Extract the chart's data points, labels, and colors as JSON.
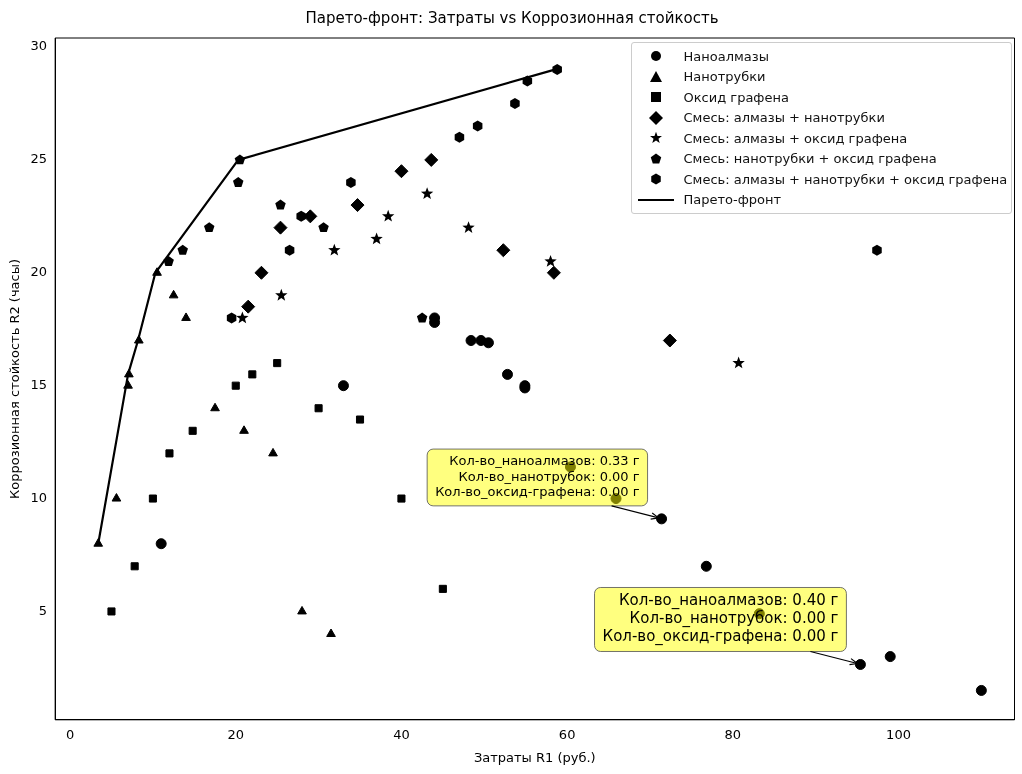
{
  "chart_data": {
    "type": "scatter",
    "title": "Парето-фронт: Затраты vs Коррозионная стойкость",
    "xlabel": "Затраты R1 (руб.)",
    "ylabel": "Коррозионная стойкость R2 (часы)",
    "xlim": [
      -1.8,
      114
    ],
    "xticks": [
      0,
      20,
      40,
      60,
      80,
      100
    ],
    "ylim": [
      0.2,
      30.4
    ],
    "yticks": [
      5,
      10,
      15,
      20,
      25,
      30
    ],
    "grid": false,
    "legend": "top right",
    "series": [
      {
        "name": "Наноалмазы",
        "color": "#000000",
        "marker": "circle",
        "x": [
          11,
          33,
          44,
          44,
          48.4,
          49.6,
          50.5,
          52.8,
          54.9,
          54.9,
          71.4,
          76.8,
          95.4,
          99,
          110,
          60.4,
          65.9,
          83.2
        ],
        "values": [
          8,
          15,
          18,
          17.8,
          17,
          17,
          16.9,
          15.5,
          15,
          14.9,
          9.1,
          7,
          2.65,
          3,
          1.5,
          11.4,
          10,
          4.9
        ]
      },
      {
        "name": "Нанотрубки",
        "color": "#000000",
        "marker": "triangle",
        "x": [
          3.4,
          5.6,
          7,
          7.1,
          8.3,
          10.5,
          12.5,
          14,
          17.5,
          21,
          24.5,
          28,
          31.5
        ],
        "values": [
          8,
          10,
          15,
          15.5,
          17,
          20,
          19,
          18,
          14,
          13,
          12,
          5,
          4
        ]
      },
      {
        "name": "Оксид графена",
        "color": "#000000",
        "marker": "square",
        "x": [
          5,
          7.8,
          10,
          12,
          14.8,
          20,
          22,
          25,
          30,
          35,
          40,
          45
        ],
        "values": [
          5,
          7,
          10,
          12,
          13,
          15,
          15.5,
          16,
          14,
          13.5,
          10,
          6
        ]
      },
      {
        "name": "Смесь: алмазы + нанотрубки",
        "color": "#000000",
        "marker": "diamond",
        "x": [
          21.5,
          23.1,
          25.4,
          29,
          34.7,
          40,
          43.6,
          52.3,
          58.4,
          72.4
        ],
        "values": [
          18.5,
          20,
          22,
          22.5,
          23,
          24.5,
          25,
          21,
          20,
          17
        ]
      },
      {
        "name": "Смесь: алмазы + оксид графена",
        "color": "#000000",
        "marker": "star",
        "x": [
          20.8,
          25.5,
          31.9,
          37,
          38.4,
          43.1,
          48.1,
          58,
          80.7
        ],
        "values": [
          18,
          19,
          21,
          21.5,
          22.5,
          23.5,
          22,
          20.5,
          16
        ]
      },
      {
        "name": "Смесь: нанотрубки + оксид графена",
        "color": "#000000",
        "x": [
          11.9,
          13.6,
          16.8,
          20.3,
          20.5,
          25.4,
          30.6,
          42.5
        ],
        "values": [
          20.5,
          21,
          22,
          24,
          25,
          23,
          22,
          18
        ]
      },
      {
        "name": "Смесь: алмазы + нанотрубки + оксид графена",
        "color": "#000000",
        "x": [
          19.5,
          26.5,
          27.9,
          33.9,
          47,
          49.2,
          53.7,
          55.2,
          58.8,
          97.4
        ],
        "values": [
          18,
          21,
          22.5,
          24,
          26,
          26.5,
          27.5,
          28.5,
          29,
          21
        ]
      },
      {
        "name": "Парето-фронт",
        "type": "line",
        "color": "#000000",
        "marker": "none",
        "line_style": "solid",
        "x": [
          3.4,
          7,
          8.2,
          10.3,
          20.3,
          58.5
        ],
        "values": [
          8,
          15.5,
          17,
          20,
          25,
          29
        ]
      }
    ],
    "annotations": [
      {
        "text": "Кол-во_наноалмазов: 0.33 г\nКол-во_нанотрубок: 0.00 г\nКол-во_оксид-графена: 0.00 г",
        "x": 71.4,
        "y": 9.1
      },
      {
        "text": "Кол-во_наноалмазов: 0.40 г\nКол-во_нанотрубок: 0.00 г\nКол-во_оксид-графена: 0.00 г",
        "x": 95.4,
        "y": 2.65
      }
    ]
  }
}
